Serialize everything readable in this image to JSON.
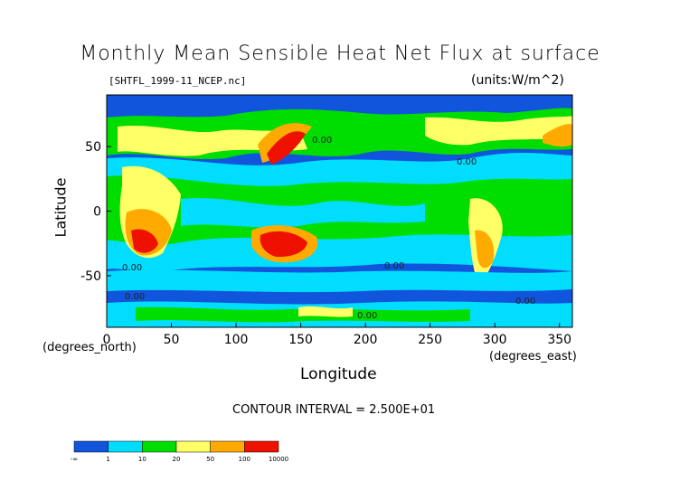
{
  "chart_data": {
    "type": "heatmap",
    "title": "Monthly Mean Sensible Heat Net Flux at surface",
    "subtitle_left": "[SHTFL_1999-11_NCEP.nc]",
    "subtitle_right": "(units:W/m^2)",
    "xlabel": "Longitude",
    "ylabel": "Latitude",
    "x_unit_note": "(degrees_east)",
    "y_unit_note": "(degrees_north)",
    "xlim": [
      0,
      360
    ],
    "ylim": [
      -90,
      90
    ],
    "x_ticks": [
      "0",
      "50",
      "100",
      "150",
      "200",
      "250",
      "300",
      "350"
    ],
    "y_ticks": [
      "50",
      "0",
      "-50"
    ],
    "contour_interval": "CONTOUR INTERVAL = 2.500E+01",
    "contour_labels": [
      "0.00",
      "0.00",
      "0.00",
      "0.00",
      "0.00",
      "0.00",
      "0.00"
    ],
    "colorbar": {
      "bins": [
        {
          "label": "-∞",
          "color": "#1155dd"
        },
        {
          "label": "1",
          "color": "#00ddff"
        },
        {
          "label": "10",
          "color": "#00dd00"
        },
        {
          "label": "20",
          "color": "#ffff66"
        },
        {
          "label": "50",
          "color": "#ffaa00"
        },
        {
          "label": "100",
          "color": "#ee1100"
        },
        {
          "label": "10000",
          "color": ""
        }
      ]
    }
  }
}
